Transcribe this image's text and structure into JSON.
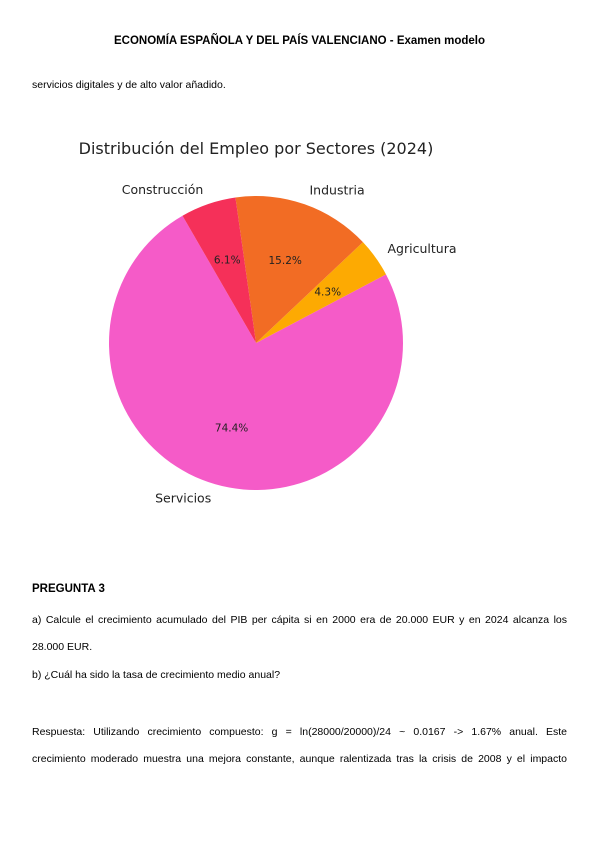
{
  "header": {
    "title": "ECONOMÍA ESPAÑOLA Y DEL PAÍS VALENCIANO - Examen modelo"
  },
  "intro_fragment": "servicios digitales y de alto valor añadido.",
  "chart_data": {
    "type": "pie",
    "title": "Distribución del Empleo por Sectores (2024)",
    "slices": [
      {
        "label": "Servicios",
        "value": 74.4,
        "pct_label": "74.4%",
        "color": "#f55bc8"
      },
      {
        "label": "Agricultura",
        "value": 4.3,
        "pct_label": "4.3%",
        "color": "#fdaa02"
      },
      {
        "label": "Industria",
        "value": 15.2,
        "pct_label": "15.2%",
        "color": "#f26c24"
      },
      {
        "label": "Construcción",
        "value": 6.1,
        "pct_label": "6.1%",
        "color": "#f53059"
      }
    ]
  },
  "question": {
    "title": "PREGUNTA 3",
    "a_line1": "a) Calcule el crecimiento acumulado del PIB per cápita si en 2000 era de 20.000 EUR y en 2024 alcanza los",
    "a_line2": "28.000 EUR.",
    "b": "b) ¿Cuál ha sido la tasa de crecimiento medio anual?",
    "answer_line1": "Respuesta: Utilizando crecimiento compuesto: g = ln(28000/20000)/24 ~ 0.0167 -> 1.67% anual. Este",
    "answer_line2": "crecimiento moderado muestra una mejora constante, aunque ralentizada tras la crisis de 2008 y el impacto"
  }
}
